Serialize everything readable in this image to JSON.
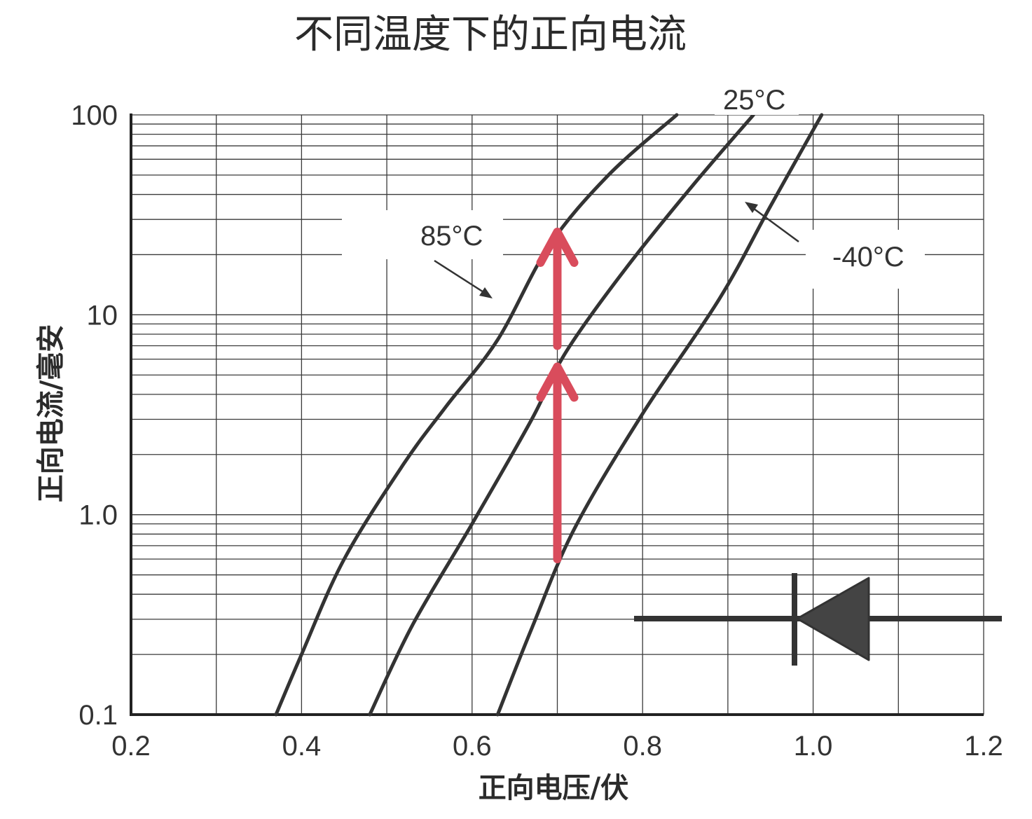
{
  "chart_data": {
    "type": "line",
    "title": "不同温度下的正向电流",
    "xlabel": "正向电压/伏",
    "ylabel": "正向电流/毫安",
    "xlim": [
      0.2,
      1.2
    ],
    "ylim": [
      0.1,
      100
    ],
    "yscale": "log",
    "grid": true,
    "x_ticks": [
      0.2,
      0.4,
      0.6,
      0.8,
      1.0,
      1.2
    ],
    "x_tick_labels": [
      "0.2",
      "0.4",
      "0.6",
      "0.8",
      "1.0",
      "1.2"
    ],
    "y_ticks": [
      0.1,
      1,
      10,
      100
    ],
    "y_tick_labels": [
      "0.1",
      "1.0",
      "10",
      "100"
    ],
    "series": [
      {
        "name": "85°C",
        "points": [
          [
            0.37,
            0.1
          ],
          [
            0.4,
            0.2
          ],
          [
            0.45,
            0.6
          ],
          [
            0.52,
            1.8
          ],
          [
            0.57,
            3.5
          ],
          [
            0.63,
            7.5
          ],
          [
            0.69,
            22
          ],
          [
            0.76,
            50
          ],
          [
            0.84,
            100
          ]
        ]
      },
      {
        "name": "25°C",
        "points": [
          [
            0.48,
            0.1
          ],
          [
            0.53,
            0.28
          ],
          [
            0.6,
            0.9
          ],
          [
            0.67,
            3.0
          ],
          [
            0.71,
            6.5
          ],
          [
            0.78,
            17
          ],
          [
            0.86,
            45
          ],
          [
            0.93,
            100
          ]
        ]
      },
      {
        "name": "-40°C",
        "points": [
          [
            0.63,
            0.1
          ],
          [
            0.67,
            0.27
          ],
          [
            0.72,
            0.85
          ],
          [
            0.8,
            3.2
          ],
          [
            0.89,
            12
          ],
          [
            0.95,
            35
          ],
          [
            1.01,
            100
          ]
        ]
      }
    ],
    "annotations": {
      "arrows": [
        {
          "x": 0.7,
          "from_y": 0.6,
          "to_y": 5.5
        },
        {
          "x": 0.7,
          "from_y": 7,
          "to_y": 26
        }
      ]
    },
    "label_85": "85°C",
    "label_25": "25°C",
    "label_m40": "-40°C"
  }
}
